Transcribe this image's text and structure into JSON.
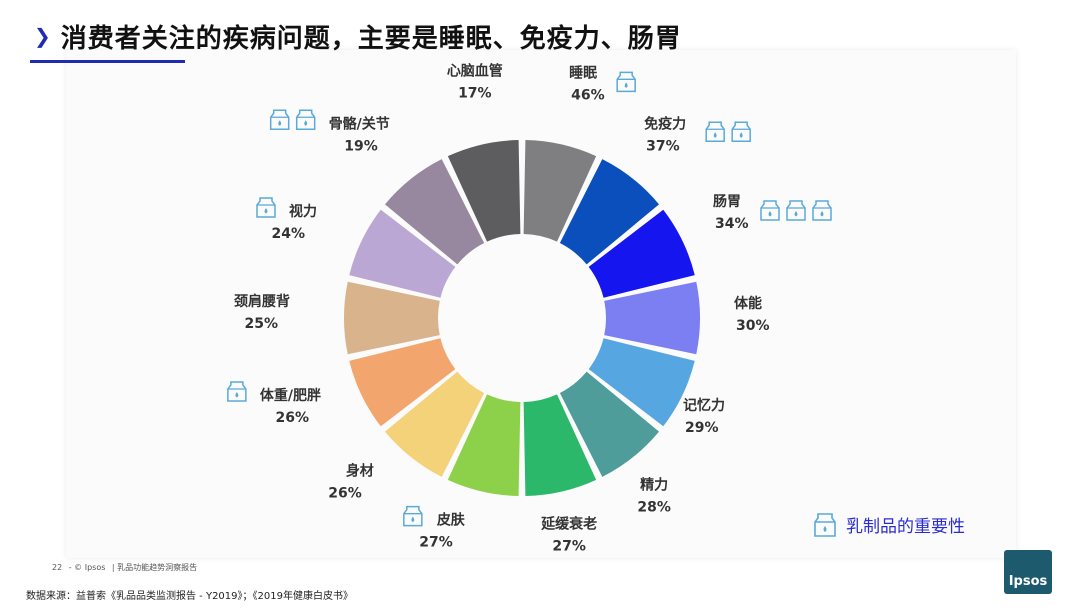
{
  "header": {
    "title": "消费者关注的疾病问题，主要是睡眠、免疫力、肠胃",
    "accent_color": "#1f2bb3"
  },
  "chart_data": {
    "type": "pie",
    "variant": "donut",
    "categories": [
      "睡眠",
      "免疫力",
      "肠胃",
      "体能",
      "记忆力",
      "精力",
      "延缓衰老",
      "皮肤",
      "身材",
      "体重/肥胖",
      "颈肩腰背",
      "视力",
      "骨骼/关节",
      "心脑血管"
    ],
    "values": [
      46,
      37,
      34,
      30,
      29,
      28,
      27,
      27,
      26,
      26,
      25,
      24,
      19,
      17
    ],
    "labels": [
      "46%",
      "37%",
      "34%",
      "30%",
      "29%",
      "28%",
      "27%",
      "27%",
      "26%",
      "26%",
      "25%",
      "24%",
      "19%",
      "17%"
    ],
    "colors": [
      "#7f7f82",
      "#0b4fbd",
      "#1515f0",
      "#7c7ff2",
      "#56a6e2",
      "#4f9d9b",
      "#2bb86b",
      "#8dd14a",
      "#f3d27a",
      "#f2a56d",
      "#d9b38c",
      "#bba7d4",
      "#97879f",
      "#5d5d60"
    ],
    "milk_icon_counts": [
      1,
      2,
      3,
      0,
      0,
      0,
      0,
      1,
      0,
      1,
      0,
      1,
      2,
      0
    ],
    "legend": {
      "label": "乳制品的重要性",
      "icon": "milk-carton-icon",
      "color": "#2b2cd0"
    }
  },
  "footer": {
    "page_number": "22",
    "copyright": "- © Ipsos",
    "report_name": "| 乳品功能趋势洞察报告",
    "source": "数据来源：益普索《乳品品类监测报告 - Y2019》；《2019年健康白皮书》",
    "logo_text": "Ipsos"
  }
}
